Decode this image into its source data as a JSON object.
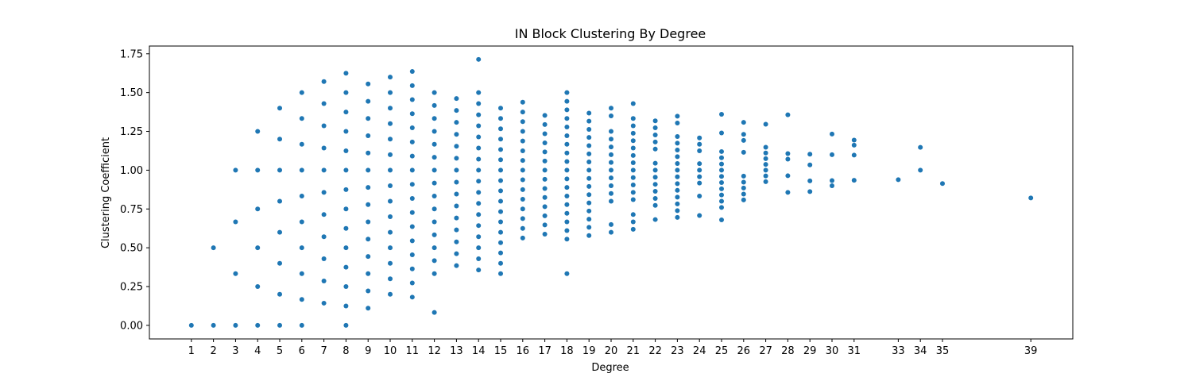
{
  "chart_data": {
    "type": "scatter",
    "title": "IN Block Clustering By Degree",
    "xlabel": "Degree",
    "ylabel": "Clustering Coefficient",
    "xlim": [
      -0.9,
      40.9
    ],
    "ylim": [
      -0.0875,
      1.8
    ],
    "x_ticks": [
      1,
      2,
      3,
      4,
      5,
      6,
      7,
      8,
      9,
      10,
      11,
      12,
      13,
      14,
      15,
      16,
      17,
      18,
      19,
      20,
      21,
      22,
      23,
      24,
      25,
      26,
      27,
      28,
      29,
      30,
      31,
      33,
      34,
      35,
      39
    ],
    "y_ticks": [
      0.0,
      0.25,
      0.5,
      0.75,
      1.0,
      1.25,
      1.5,
      1.75
    ],
    "y_tick_labels": [
      "0.00",
      "0.25",
      "0.50",
      "0.75",
      "1.00",
      "1.25",
      "1.50",
      "1.75"
    ],
    "grid": false,
    "marker_color": "#1f77b4",
    "points_by_degree": [
      {
        "x": 1,
        "y": [
          0.0
        ]
      },
      {
        "x": 2,
        "y": [
          0.0,
          0.5
        ]
      },
      {
        "x": 3,
        "y": [
          0.0,
          0.333,
          0.667,
          1.0
        ]
      },
      {
        "x": 4,
        "y": [
          0.0,
          0.25,
          0.5,
          0.75,
          1.0,
          1.25
        ]
      },
      {
        "x": 5,
        "y": [
          0.0,
          0.2,
          0.4,
          0.6,
          0.8,
          1.0,
          1.2,
          1.4
        ]
      },
      {
        "x": 6,
        "y": [
          0.0,
          0.167,
          0.333,
          0.5,
          0.667,
          0.833,
          1.0,
          1.167,
          1.333,
          1.5
        ]
      },
      {
        "x": 7,
        "y": [
          0.143,
          0.286,
          0.429,
          0.571,
          0.714,
          0.857,
          1.0,
          1.143,
          1.286,
          1.429,
          1.571
        ]
      },
      {
        "x": 8,
        "y": [
          0.0,
          0.125,
          0.25,
          0.375,
          0.5,
          0.625,
          0.75,
          0.875,
          1.0,
          1.125,
          1.25,
          1.375,
          1.5,
          1.625
        ]
      },
      {
        "x": 9,
        "y": [
          0.111,
          0.222,
          0.333,
          0.444,
          0.556,
          0.667,
          0.778,
          0.889,
          1.0,
          1.111,
          1.222,
          1.333,
          1.444,
          1.556
        ]
      },
      {
        "x": 10,
        "y": [
          0.2,
          0.3,
          0.4,
          0.5,
          0.6,
          0.7,
          0.8,
          0.9,
          1.0,
          1.1,
          1.2,
          1.3,
          1.4,
          1.5,
          1.6
        ]
      },
      {
        "x": 11,
        "y": [
          0.182,
          0.273,
          0.364,
          0.455,
          0.545,
          0.636,
          0.727,
          0.818,
          0.909,
          1.0,
          1.091,
          1.182,
          1.273,
          1.364,
          1.455,
          1.545,
          1.636
        ]
      },
      {
        "x": 12,
        "y": [
          0.083,
          0.333,
          0.417,
          0.5,
          0.583,
          0.667,
          0.75,
          0.833,
          0.917,
          1.0,
          1.083,
          1.167,
          1.25,
          1.333,
          1.417,
          1.5
        ]
      },
      {
        "x": 13,
        "y": [
          0.385,
          0.462,
          0.538,
          0.615,
          0.692,
          0.769,
          0.846,
          0.923,
          1.0,
          1.077,
          1.154,
          1.231,
          1.308,
          1.385,
          1.462
        ]
      },
      {
        "x": 14,
        "y": [
          0.357,
          0.429,
          0.5,
          0.571,
          0.643,
          0.714,
          0.786,
          0.857,
          0.929,
          1.0,
          1.071,
          1.143,
          1.214,
          1.286,
          1.357,
          1.429,
          1.5,
          1.714
        ]
      },
      {
        "x": 15,
        "y": [
          0.333,
          0.4,
          0.467,
          0.533,
          0.6,
          0.667,
          0.733,
          0.8,
          0.867,
          0.933,
          1.0,
          1.067,
          1.133,
          1.2,
          1.267,
          1.333,
          1.4
        ]
      },
      {
        "x": 16,
        "y": [
          0.563,
          0.625,
          0.688,
          0.75,
          0.813,
          0.875,
          0.938,
          1.0,
          1.063,
          1.125,
          1.188,
          1.25,
          1.313,
          1.375,
          1.438
        ]
      },
      {
        "x": 17,
        "y": [
          0.588,
          0.647,
          0.706,
          0.765,
          0.824,
          0.882,
          0.941,
          1.0,
          1.059,
          1.118,
          1.176,
          1.235,
          1.294,
          1.353
        ]
      },
      {
        "x": 18,
        "y": [
          0.333,
          0.556,
          0.611,
          0.667,
          0.722,
          0.778,
          0.833,
          0.889,
          0.944,
          1.0,
          1.056,
          1.111,
          1.167,
          1.222,
          1.278,
          1.333,
          1.389,
          1.444,
          1.5
        ]
      },
      {
        "x": 19,
        "y": [
          0.579,
          0.632,
          0.684,
          0.737,
          0.789,
          0.842,
          0.895,
          0.947,
          1.0,
          1.053,
          1.105,
          1.158,
          1.211,
          1.263,
          1.316,
          1.368
        ]
      },
      {
        "x": 20,
        "y": [
          0.6,
          0.65,
          0.8,
          0.85,
          0.9,
          0.95,
          1.0,
          1.05,
          1.1,
          1.15,
          1.2,
          1.25,
          1.35,
          1.4
        ]
      },
      {
        "x": 21,
        "y": [
          0.619,
          0.667,
          0.714,
          0.81,
          0.857,
          0.905,
          0.952,
          1.0,
          1.048,
          1.095,
          1.143,
          1.19,
          1.238,
          1.286,
          1.333,
          1.429
        ]
      },
      {
        "x": 22,
        "y": [
          0.682,
          0.773,
          0.818,
          0.864,
          0.909,
          0.955,
          1.0,
          1.045,
          1.136,
          1.182,
          1.227,
          1.273,
          1.318
        ]
      },
      {
        "x": 23,
        "y": [
          0.696,
          0.739,
          0.783,
          0.826,
          0.87,
          0.913,
          0.957,
          1.0,
          1.043,
          1.087,
          1.13,
          1.174,
          1.217,
          1.304,
          1.348
        ]
      },
      {
        "x": 24,
        "y": [
          0.708,
          0.833,
          0.917,
          0.958,
          1.0,
          1.042,
          1.125,
          1.167,
          1.208
        ]
      },
      {
        "x": 25,
        "y": [
          0.68,
          0.76,
          0.8,
          0.84,
          0.88,
          0.92,
          0.96,
          1.0,
          1.04,
          1.08,
          1.12,
          1.24,
          1.36
        ]
      },
      {
        "x": 26,
        "y": [
          0.808,
          0.846,
          0.885,
          0.923,
          0.962,
          1.115,
          1.192,
          1.231,
          1.308
        ]
      },
      {
        "x": 27,
        "y": [
          0.926,
          0.963,
          1.0,
          1.037,
          1.074,
          1.111,
          1.148,
          1.296
        ]
      },
      {
        "x": 28,
        "y": [
          0.857,
          0.964,
          1.071,
          1.107,
          1.357
        ]
      },
      {
        "x": 29,
        "y": [
          0.862,
          0.931,
          1.034,
          1.103
        ]
      },
      {
        "x": 30,
        "y": [
          0.9,
          0.933,
          1.1,
          1.233
        ]
      },
      {
        "x": 31,
        "y": [
          0.935,
          1.097,
          1.161,
          1.194
        ]
      },
      {
        "x": 33,
        "y": [
          0.939
        ]
      },
      {
        "x": 34,
        "y": [
          1.0,
          1.147
        ]
      },
      {
        "x": 35,
        "y": [
          0.914
        ]
      },
      {
        "x": 39,
        "y": [
          0.821
        ]
      }
    ]
  }
}
